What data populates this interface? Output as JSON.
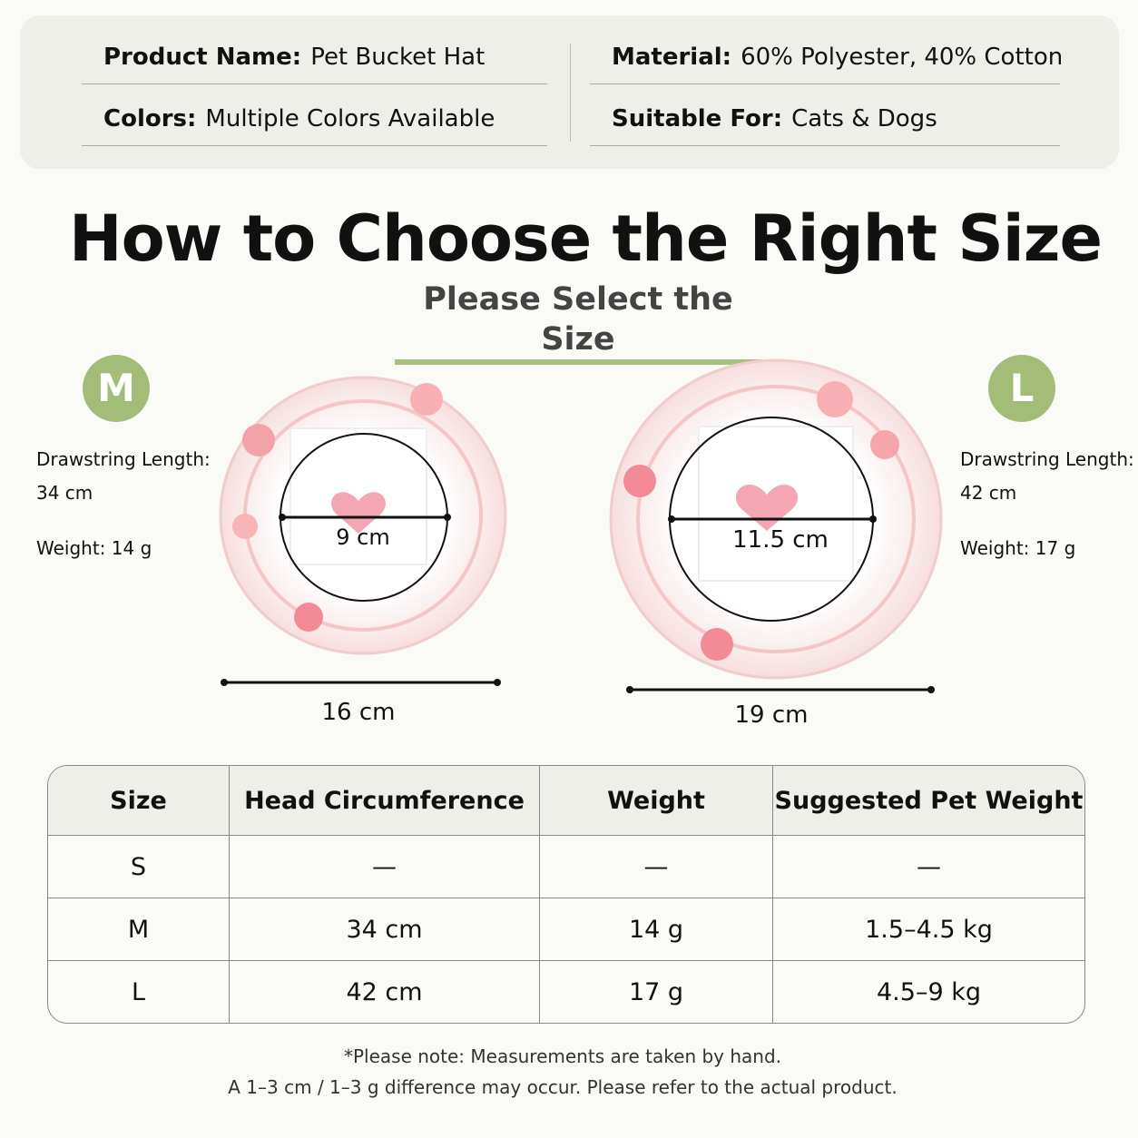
{
  "info": [
    {
      "label": "Product Name:",
      "value": "Pet Bucket Hat"
    },
    {
      "label": "Material:",
      "value": "60% Polyester, 40% Cotton"
    },
    {
      "label": "Colors:",
      "value": "Multiple Colors Available"
    },
    {
      "label": "Suitable For:",
      "value": "Cats & Dogs"
    }
  ],
  "title": "How to Choose the Right Size",
  "subtitle": "Please Select the Size",
  "sizes": [
    {
      "badge": "M",
      "drawstring_label": "Drawstring Length:",
      "drawstring": "34 cm",
      "weight_label": "Weight:",
      "weight": "14 g",
      "inner": "9 cm",
      "outer": "16 cm"
    },
    {
      "badge": "L",
      "drawstring_label": "Drawstring Length:",
      "drawstring": "42 cm",
      "weight_label": "Weight:",
      "weight": "17 g",
      "inner": "11.5 cm",
      "outer": "19 cm"
    }
  ],
  "table": {
    "header": [
      "Size",
      "Head Circumference",
      "Weight",
      "Suggested Pet Weight"
    ],
    "rows": [
      [
        "S",
        "—",
        "—",
        "—"
      ],
      [
        "M",
        "34 cm",
        "14 g",
        "1.5–4.5 kg"
      ],
      [
        "L",
        "42 cm",
        "17 g",
        "4.5–9 kg"
      ]
    ]
  },
  "note": [
    "*Please note: Measurements are taken by hand.",
    "A 1–3 cm / 1–3 g difference may occur. Please refer to the actual product."
  ]
}
